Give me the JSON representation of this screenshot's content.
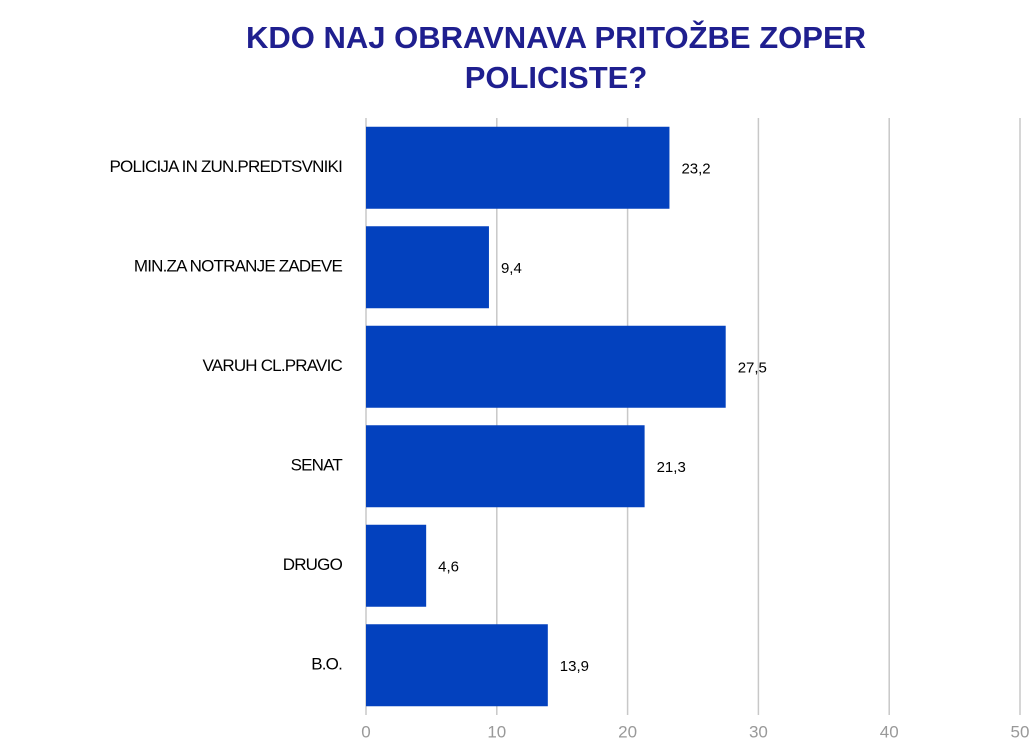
{
  "chart_data": {
    "type": "bar",
    "orientation": "horizontal",
    "title": "KDO NAJ OBRAVNAVA PRITOŽBE ZOPER POLICISTE?",
    "categories": [
      "POLICIJA IN ZUN.PREDTSVNIKI",
      "MIN.ZA NOTRANJE ZADEVE",
      "VARUH CL.PRAVIC",
      "SENAT",
      "DRUGO",
      "B.O."
    ],
    "values": [
      23.2,
      9.4,
      27.5,
      21.3,
      4.6,
      13.9
    ],
    "value_labels": [
      "23,2",
      "9,4",
      "27,5",
      "21,3",
      "4,6",
      "13,9"
    ],
    "color": "#0341be",
    "xlim": [
      0,
      50
    ],
    "xticks": [
      0,
      10,
      20,
      30,
      40,
      50
    ],
    "grid": true
  }
}
